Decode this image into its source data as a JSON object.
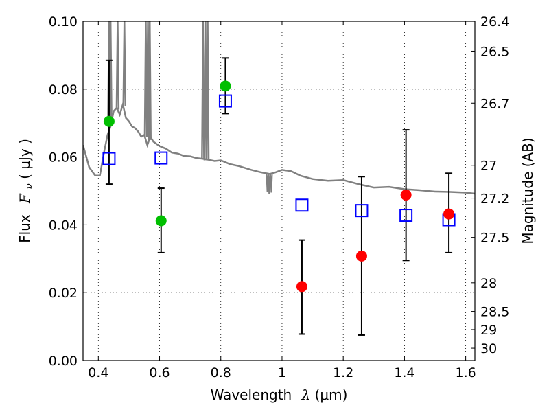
{
  "chart_data": {
    "type": "scatter",
    "xlabel": {
      "prefix": "Wavelength",
      "var": "λ",
      "unit": " (μm)"
    },
    "ylabel": {
      "prefix": "Flux",
      "var": "F",
      "sub": "ν",
      "unit": " ( μJy )"
    },
    "y2label": "Magnitude (AB)",
    "xlim": [
      0.35,
      1.63
    ],
    "ylim": [
      0.0,
      0.1
    ],
    "grid": true,
    "x_ticks": [
      "0.4",
      "0.6",
      "0.8",
      "1",
      "1.2",
      "1.4",
      "1.6"
    ],
    "x_tick_values": [
      0.4,
      0.6,
      0.8,
      1.0,
      1.2,
      1.4,
      1.6
    ],
    "y_ticks": [
      "0.00",
      "0.02",
      "0.04",
      "0.06",
      "0.08",
      "0.10"
    ],
    "y_tick_values": [
      0.0,
      0.02,
      0.04,
      0.06,
      0.08,
      0.1
    ],
    "y2_ticks": [
      "26.4",
      "26.5",
      "26.7",
      "27",
      "27.2",
      "27.5",
      "28",
      "28.5",
      "29",
      "30"
    ],
    "y2_tick_values": [
      26.4,
      26.5,
      26.7,
      27.0,
      27.2,
      27.5,
      28.0,
      28.5,
      29.0,
      30.0
    ],
    "colors": {
      "model": "#808080",
      "optical": "#00bf00",
      "nir": "#ff0000",
      "model_box": "#0000ff",
      "errorbar": "#000000"
    },
    "model_spectrum": {
      "x": [
        0.35,
        0.37,
        0.39,
        0.405,
        0.42,
        0.43,
        0.44,
        0.45,
        0.46,
        0.47,
        0.48,
        0.49,
        0.5,
        0.51,
        0.52,
        0.53,
        0.54,
        0.55,
        0.56,
        0.57,
        0.58,
        0.6,
        0.62,
        0.64,
        0.66,
        0.68,
        0.7,
        0.72,
        0.74,
        0.76,
        0.78,
        0.8,
        0.83,
        0.86,
        0.9,
        0.93,
        0.96,
        0.98,
        1.0,
        1.03,
        1.06,
        1.1,
        1.15,
        1.2,
        1.25,
        1.3,
        1.35,
        1.4,
        1.45,
        1.5,
        1.55,
        1.6,
        1.63
      ],
      "y": [
        0.0635,
        0.057,
        0.0545,
        0.0545,
        0.062,
        0.0665,
        0.069,
        0.0735,
        0.0745,
        0.0725,
        0.0755,
        0.0715,
        0.0705,
        0.069,
        0.0685,
        0.0675,
        0.066,
        0.0665,
        0.0635,
        0.066,
        0.0645,
        0.0632,
        0.0625,
        0.0613,
        0.061,
        0.0603,
        0.0602,
        0.0597,
        0.0595,
        0.0592,
        0.0588,
        0.059,
        0.0579,
        0.0573,
        0.0562,
        0.0555,
        0.055,
        0.0555,
        0.0562,
        0.0558,
        0.0545,
        0.0535,
        0.053,
        0.0532,
        0.052,
        0.051,
        0.0512,
        0.0505,
        0.0502,
        0.0498,
        0.0497,
        0.0495,
        0.0492
      ],
      "spikes": [
        {
          "x": 0.435,
          "base": 0.069,
          "top": 0.1
        },
        {
          "x": 0.44,
          "base": 0.071,
          "top": 0.1
        },
        {
          "x": 0.463,
          "base": 0.074,
          "top": 0.1
        },
        {
          "x": 0.485,
          "base": 0.075,
          "top": 0.1
        },
        {
          "x": 0.555,
          "base": 0.066,
          "top": 0.1
        },
        {
          "x": 0.562,
          "base": 0.066,
          "top": 0.1
        },
        {
          "x": 0.568,
          "base": 0.065,
          "top": 0.1
        },
        {
          "x": 0.742,
          "base": 0.0595,
          "top": 0.1
        },
        {
          "x": 0.75,
          "base": 0.059,
          "top": 0.1
        },
        {
          "x": 0.757,
          "base": 0.059,
          "top": 0.1
        }
      ],
      "dips": [
        {
          "x": 0.952,
          "base": 0.055,
          "bottom": 0.0498
        },
        {
          "x": 0.958,
          "base": 0.055,
          "bottom": 0.049
        },
        {
          "x": 0.965,
          "base": 0.055,
          "bottom": 0.0495
        }
      ]
    },
    "model_points": {
      "x": [
        0.435,
        0.605,
        0.815,
        1.065,
        1.26,
        1.405,
        1.545
      ],
      "y": [
        0.0595,
        0.0597,
        0.0765,
        0.0458,
        0.0442,
        0.0428,
        0.0415
      ]
    },
    "optical_points": {
      "x": [
        0.435,
        0.605,
        0.815
      ],
      "y": [
        0.0705,
        0.0412,
        0.0809
      ],
      "err_low": [
        0.052,
        0.0318,
        0.0728
      ],
      "err_high": [
        0.0885,
        0.0508,
        0.0892
      ]
    },
    "nir_points": {
      "x": [
        1.065,
        1.26,
        1.405,
        1.545
      ],
      "y": [
        0.0218,
        0.0308,
        0.0488,
        0.0432
      ],
      "err_low": [
        0.0078,
        0.0075,
        0.0295,
        0.0318
      ],
      "err_high": [
        0.0355,
        0.0542,
        0.068,
        0.0552
      ]
    }
  }
}
